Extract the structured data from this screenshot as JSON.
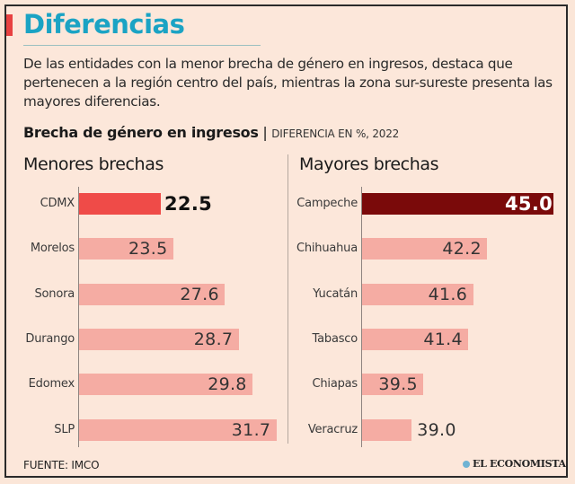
{
  "header": {
    "title": "Diferencias",
    "intro": "De las entidades con la menor brecha de género en ingresos, destaca que pertenecen a la región centro del país, mientras la zona sur-sureste presenta las mayores diferencias."
  },
  "colors": {
    "title": "#1ba3c4",
    "accent": "#e84141",
    "highlight_low": "#ef4b48",
    "highlight_high": "#7a0a0a",
    "bar": "#f5aca3",
    "background": "#fce7da"
  },
  "chart_data": {
    "type": "bar",
    "title": "Brecha de género en ingresos",
    "subtitle": "DIFERENCIA EN %, 2022",
    "panels": [
      {
        "name": "Menores brechas",
        "categories": [
          "CDMX",
          "Morelos",
          "Sonora",
          "Durango",
          "Edomex",
          "SLP"
        ],
        "values": [
          22.5,
          23.5,
          27.6,
          28.7,
          29.8,
          31.7
        ],
        "labels": [
          "22.5",
          "23.5",
          "27.6",
          "28.7",
          "29.8",
          "31.7"
        ],
        "highlight_index": 0
      },
      {
        "name": "Mayores brechas",
        "categories": [
          "Campeche",
          "Chihuahua",
          "Yucatán",
          "Tabasco",
          "Chiapas",
          "Veracruz"
        ],
        "values": [
          45.0,
          42.2,
          41.6,
          41.4,
          39.5,
          39.0
        ],
        "labels": [
          "45.0",
          "42.2",
          "41.6",
          "41.4",
          "39.5",
          "39.0"
        ],
        "highlight_index": 0
      }
    ],
    "orientation": "horizontal",
    "grid": false,
    "legend": "none"
  },
  "footer": {
    "source": "FUENTE: IMCO",
    "brand": "EL ECONOMISTA"
  }
}
